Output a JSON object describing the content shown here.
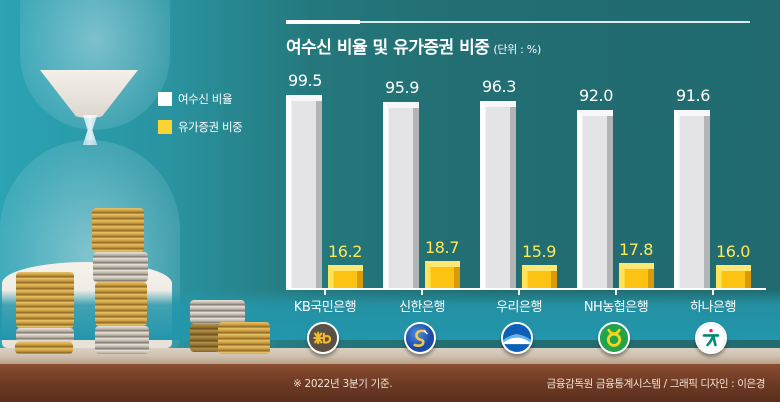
{
  "header": {
    "title": "여수신 비율 및 유가증권 비중",
    "unit": "(단위 : %)"
  },
  "legend": {
    "items": [
      {
        "label": "여수신 비율",
        "color": "#ffffff"
      },
      {
        "label": "유가증권 비중",
        "color": "#fcd535"
      }
    ]
  },
  "banks": [
    {
      "name": "KB국민은행",
      "logo": "kb-logo-icon",
      "loan_deposit": "99.5",
      "securities": "16.2"
    },
    {
      "name": "신한은행",
      "logo": "shinhan-logo-icon",
      "loan_deposit": "95.9",
      "securities": "18.7"
    },
    {
      "name": "우리은행",
      "logo": "woori-logo-icon",
      "loan_deposit": "96.3",
      "securities": "15.9"
    },
    {
      "name": "NH농협은행",
      "logo": "nh-logo-icon",
      "loan_deposit": "92.0",
      "securities": "17.8"
    },
    {
      "name": "하나은행",
      "logo": "hana-logo-icon",
      "loan_deposit": "91.6",
      "securities": "16.0"
    }
  ],
  "footer": {
    "note": "※ 2022년 3분기 기준.",
    "source": "금융감독원 금융통계시스템 / 그래픽 디자인 : 이은경"
  },
  "colors": {
    "background": "#216b70",
    "white_bar": "#e4e4e6",
    "yellow_bar": "#fcc313",
    "yellow_value": "#ffe85a"
  },
  "chart_data": {
    "type": "bar",
    "title": "여수신 비율 및 유가증권 비중",
    "subtitle": "(단위 : %)",
    "categories": [
      "KB국민은행",
      "신한은행",
      "우리은행",
      "NH농협은행",
      "하나은행"
    ],
    "series": [
      {
        "name": "여수신 비율",
        "values": [
          99.5,
          95.9,
          96.3,
          92.0,
          91.6
        ]
      },
      {
        "name": "유가증권 비중",
        "values": [
          16.2,
          18.7,
          15.9,
          17.8,
          16.0
        ]
      }
    ],
    "xlabel": "",
    "ylabel": "%",
    "legend_position": "left",
    "grid": false,
    "data_labels": true,
    "annotations": [
      "※ 2022년 3분기 기준.",
      "금융감독원 금융통계시스템 / 그래픽 디자인 : 이은경"
    ]
  }
}
